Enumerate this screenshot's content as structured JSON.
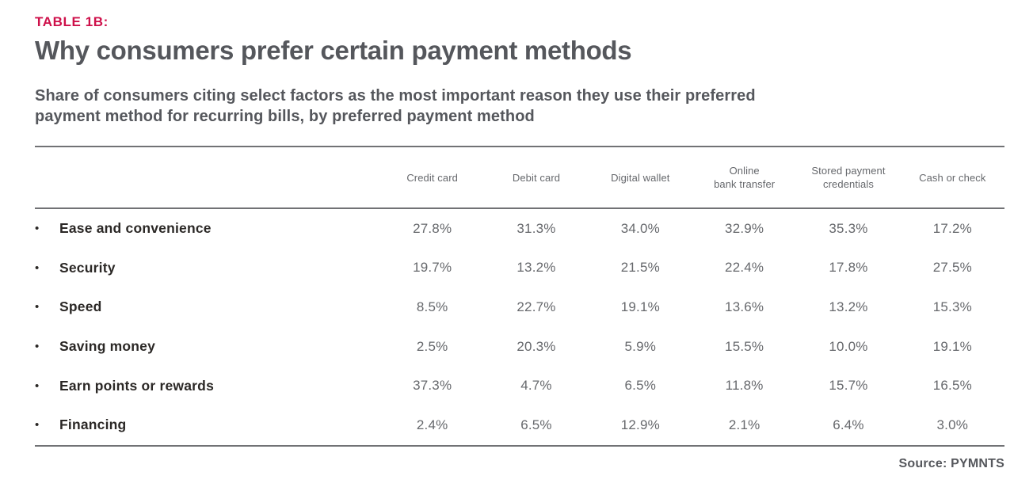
{
  "doc": {
    "tag": "TABLE 1B:",
    "title": "Why consumers prefer certain payment methods",
    "subtitle": "Share of consumers citing select factors as the most important reason they use their preferred\npayment method for recurring bills, by preferred payment method",
    "source": "Source: PYMNTS"
  },
  "icons": {
    "bullet": "•"
  },
  "colors": {
    "accent_red": "#CE104A",
    "heading_gray": "#55575C",
    "body_gray": "#66686C",
    "label_black": "#2B2826",
    "rule_gray": "#717275",
    "background": "#FFFFFF"
  },
  "table": {
    "columns": [
      "Credit card",
      "Debit card",
      "Digital wallet",
      "Online\nbank transfer",
      "Stored payment\ncredentials",
      "Cash or check"
    ],
    "rows": [
      {
        "label": "Ease and convenience",
        "values": [
          "27.8%",
          "31.3%",
          "34.0%",
          "32.9%",
          "35.3%",
          "17.2%"
        ]
      },
      {
        "label": "Security",
        "values": [
          "19.7%",
          "13.2%",
          "21.5%",
          "22.4%",
          "17.8%",
          "27.5%"
        ]
      },
      {
        "label": "Speed",
        "values": [
          "8.5%",
          "22.7%",
          "19.1%",
          "13.6%",
          "13.2%",
          "15.3%"
        ]
      },
      {
        "label": "Saving money",
        "values": [
          "2.5%",
          "20.3%",
          "5.9%",
          "15.5%",
          "10.0%",
          "19.1%"
        ]
      },
      {
        "label": "Earn points or rewards",
        "values": [
          "37.3%",
          "4.7%",
          "6.5%",
          "11.8%",
          "15.7%",
          "16.5%"
        ]
      },
      {
        "label": "Financing",
        "values": [
          "2.4%",
          "6.5%",
          "12.9%",
          "2.1%",
          "6.4%",
          "3.0%"
        ]
      }
    ]
  },
  "chart_data": {
    "type": "table",
    "title": "Why consumers prefer certain payment methods",
    "subtitle": "Share of consumers citing select factors as the most important reason they use their preferred payment method for recurring bills, by preferred payment method",
    "columns": [
      "Credit card",
      "Debit card",
      "Digital wallet",
      "Online bank transfer",
      "Stored payment credentials",
      "Cash or check"
    ],
    "categories": [
      "Ease and convenience",
      "Security",
      "Speed",
      "Saving money",
      "Earn points or rewards",
      "Financing"
    ],
    "series": [
      {
        "name": "Credit card",
        "values": [
          27.8,
          19.7,
          8.5,
          2.5,
          37.3,
          2.4
        ]
      },
      {
        "name": "Debit card",
        "values": [
          31.3,
          13.2,
          22.7,
          20.3,
          4.7,
          6.5
        ]
      },
      {
        "name": "Digital wallet",
        "values": [
          34.0,
          21.5,
          19.1,
          5.9,
          6.5,
          12.9
        ]
      },
      {
        "name": "Online bank transfer",
        "values": [
          32.9,
          22.4,
          13.6,
          15.5,
          11.8,
          2.1
        ]
      },
      {
        "name": "Stored payment credentials",
        "values": [
          35.3,
          17.8,
          13.2,
          10.0,
          15.7,
          6.4
        ]
      },
      {
        "name": "Cash or check",
        "values": [
          17.2,
          27.5,
          15.3,
          19.1,
          16.5,
          3.0
        ]
      }
    ],
    "unit": "%",
    "source": "Source: PYMNTS"
  }
}
